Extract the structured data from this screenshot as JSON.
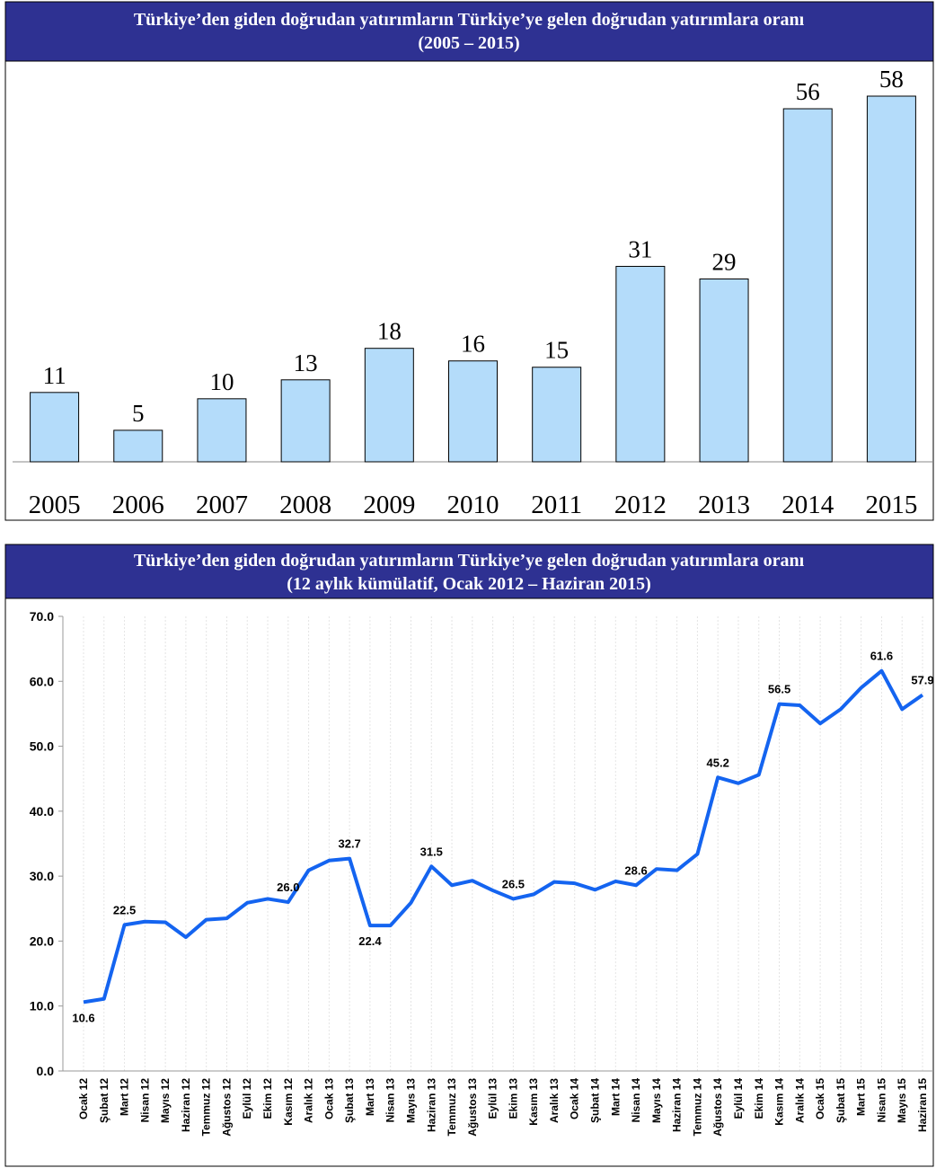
{
  "chart_data": [
    {
      "type": "bar",
      "title": "Türkiye’den giden doğrudan yatırımların Türkiye’ye gelen doğrudan yatırımlara oranı",
      "subtitle": "(2005 – 2015)",
      "categories": [
        "2005",
        "2006",
        "2007",
        "2008",
        "2009",
        "2010",
        "2011",
        "2012",
        "2013",
        "2014",
        "2015"
      ],
      "values": [
        11,
        5,
        10,
        13,
        18,
        16,
        15,
        31,
        29,
        56,
        58
      ],
      "color": "#b4dcfa"
    },
    {
      "type": "line",
      "title": "Türkiye’den giden doğrudan yatırımların Türkiye’ye gelen doğrudan yatırımlara oranı",
      "subtitle": "(12 aylık kümülatif, Ocak 2012 – Haziran 2015)",
      "categories": [
        "Ocak 12",
        "Şubat 12",
        "Mart 12",
        "Nisan 12",
        "Mayıs 12",
        "Haziran 12",
        "Temmuz 12",
        "Ağustos 12",
        "Eylül 12",
        "Ekim 12",
        "Kasım 12",
        "Aralık 12",
        "Ocak 13",
        "Şubat 13",
        "Mart 13",
        "Nisan 13",
        "Mayıs 13",
        "Haziran 13",
        "Temmuz 13",
        "Ağustos 13",
        "Eylül 13",
        "Ekim 13",
        "Kasım 13",
        "Aralık 13",
        "Ocak 14",
        "Şubat 14",
        "Mart 14",
        "Nisan 14",
        "Mayıs 14",
        "Haziran 14",
        "Temmuz 14",
        "Ağustos 14",
        "Eylül 14",
        "Ekim 14",
        "Kasım 14",
        "Aralık 14",
        "Ocak 15",
        "Şubat 15",
        "Mart 15",
        "Nisan 15",
        "Mayıs 15",
        "Haziran 15"
      ],
      "values": [
        10.6,
        11.1,
        22.5,
        23.0,
        22.9,
        20.6,
        23.3,
        23.5,
        25.9,
        26.5,
        26.0,
        30.9,
        32.4,
        32.7,
        22.4,
        22.4,
        25.9,
        31.5,
        28.6,
        29.3,
        27.8,
        26.5,
        27.2,
        29.1,
        28.9,
        27.9,
        29.2,
        28.6,
        31.1,
        30.9,
        33.4,
        45.2,
        44.3,
        45.6,
        56.5,
        56.3,
        53.5,
        55.7,
        59.0,
        61.6,
        55.7,
        57.9
      ],
      "value_labels": [
        "10.6",
        null,
        "22.5",
        null,
        null,
        null,
        null,
        null,
        null,
        null,
        "26.0",
        null,
        null,
        "32.7",
        "22.4",
        null,
        null,
        "31.5",
        null,
        null,
        null,
        "26.5",
        null,
        null,
        null,
        null,
        null,
        "28.6",
        null,
        null,
        null,
        "45.2",
        null,
        null,
        "56.5",
        null,
        null,
        null,
        null,
        "61.6",
        null,
        "57.9"
      ],
      "color": "#1464f0",
      "ylim": [
        0,
        70
      ],
      "yticks": [
        {
          "value": 0,
          "label": "0.0"
        },
        {
          "value": 10,
          "label": "10.0"
        },
        {
          "value": 20,
          "label": "20.0"
        },
        {
          "value": 30,
          "label": "30.0"
        },
        {
          "value": 40,
          "label": "40.0"
        },
        {
          "value": 50,
          "label": "50.0"
        },
        {
          "value": 60,
          "label": "60.0"
        },
        {
          "value": 70,
          "label": "70.0"
        }
      ]
    }
  ]
}
